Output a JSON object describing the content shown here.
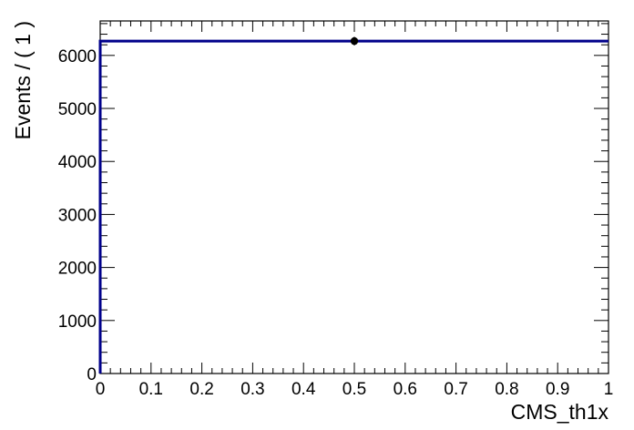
{
  "chart_data": {
    "type": "scatter",
    "xlabel": "CMS_th1x",
    "ylabel": "Events / ( 1 )",
    "xlim": [
      0,
      1
    ],
    "ylim": [
      0,
      6650
    ],
    "grid": false,
    "x_ticks": [
      "0",
      "0.1",
      "0.2",
      "0.3",
      "0.4",
      "0.5",
      "0.6",
      "0.7",
      "0.8",
      "0.9",
      "1"
    ],
    "y_ticks": [
      "0",
      "1000",
      "2000",
      "3000",
      "4000",
      "5000",
      "6000"
    ],
    "series": [
      {
        "kind": "points",
        "x": [
          0.5
        ],
        "y": [
          6270
        ],
        "yerr": [
          79
        ],
        "color": "#000000"
      },
      {
        "kind": "line",
        "x": [
          0,
          0,
          1
        ],
        "y": [
          0,
          6270,
          6270
        ],
        "color": "#00008b"
      }
    ]
  }
}
